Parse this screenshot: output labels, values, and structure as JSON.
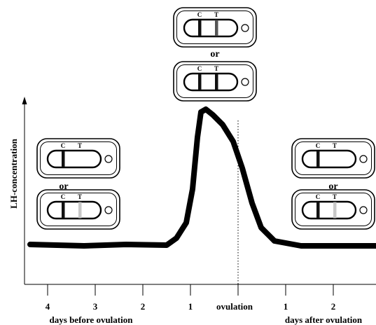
{
  "axis": {
    "y_label": "LH-concentration",
    "x_ticks": [
      "4",
      "3",
      "2",
      "1",
      "ovulation",
      "1",
      "2"
    ],
    "left_caption": "days before ovulation",
    "right_caption": "days after ovulation"
  },
  "separator": "or",
  "strip_labels": {
    "control": "C",
    "test": "T"
  },
  "test_strips": {
    "peak": [
      {
        "c_line": "dark",
        "t_line": "medium"
      },
      {
        "c_line": "dark",
        "t_line": "dark"
      }
    ],
    "before": [
      {
        "c_line": "dark",
        "t_line": "none"
      },
      {
        "c_line": "dark",
        "t_line": "faint"
      }
    ],
    "after": [
      {
        "c_line": "dark",
        "t_line": "none"
      },
      {
        "c_line": "dark",
        "t_line": "faint"
      }
    ]
  },
  "line_colors": {
    "dark": "#111111",
    "medium": "#555555",
    "faint": "#c8c8c8"
  },
  "curve_color": "#000000"
}
